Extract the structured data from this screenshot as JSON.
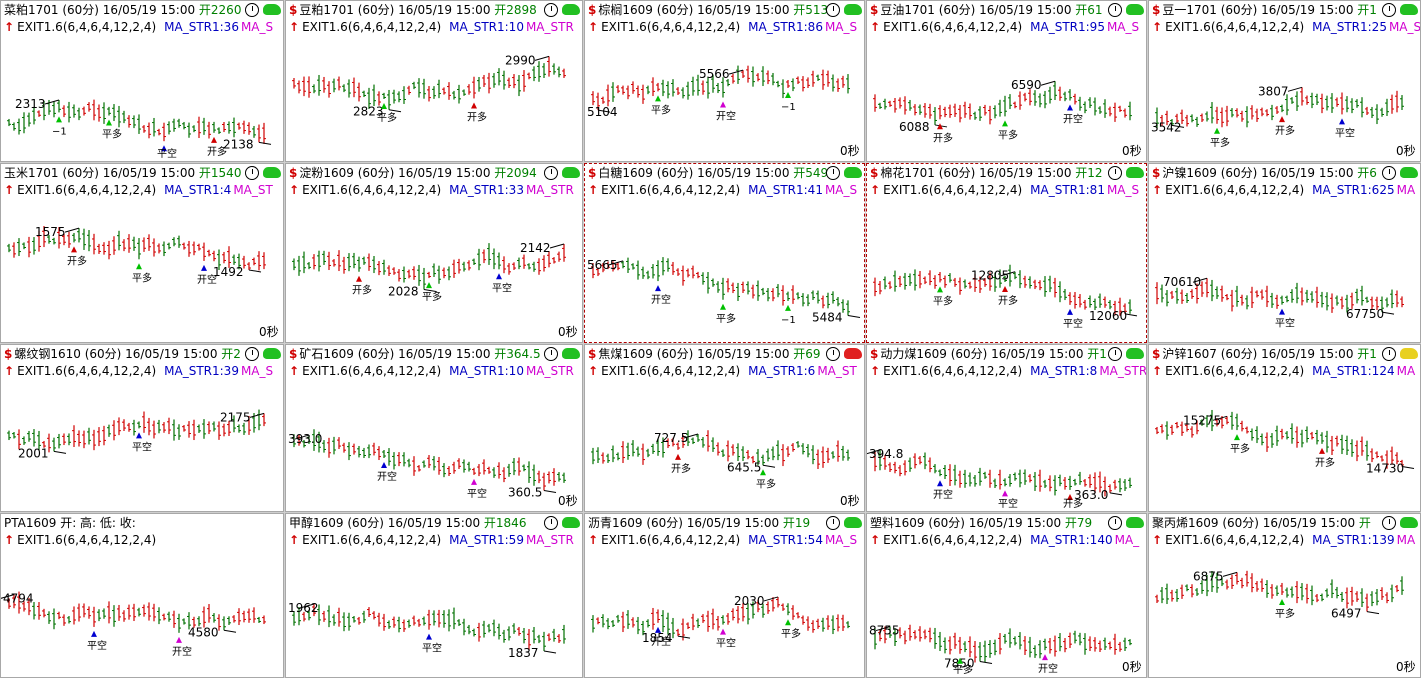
{
  "colors": {
    "up": "#d00000",
    "down": "#007000",
    "sig_up": "#d00000",
    "sig_down": "#00c000",
    "sig_blue": "#0000d0",
    "sig_magenta": "#d000d0",
    "text": "#000000"
  },
  "panels": [
    {
      "name": "菜粕1701",
      "header": "菜粕1701 (60分) 16/05/19 15:00",
      "open": "开2260",
      "ex": "EXIT1.6(6,4,6,4,12,2,4)",
      "ma1": "MA_STR1:36",
      "ma2": "MA_S",
      "bull": "g",
      "selected": false,
      "hi": "2313",
      "lo": "2138",
      "secs": "",
      "labels": [
        {
          "t": "−1",
          "c": "text"
        },
        {
          "t": "平多",
          "c": "text"
        },
        {
          "t": "平空",
          "c": "text"
        },
        {
          "t": "开多",
          "c": "text"
        }
      ]
    },
    {
      "name": "豆粕1701",
      "header": "豆粕1701 (60分) 16/05/19 15:00",
      "open": "开2898",
      "ex": "EXIT1.6(6,4,6,4,12,2,4)",
      "ma1": "MA_STR1:10",
      "ma2": "MA_STR",
      "bull": "g",
      "selected": false,
      "hi": "2990",
      "lo": "2823",
      "secs": "",
      "labels": [
        {
          "t": "平多",
          "c": "text"
        },
        {
          "t": "开多",
          "c": "text"
        }
      ]
    },
    {
      "name": "棕榈1609",
      "header": "棕榈1609 (60分) 16/05/19 15:00",
      "open": "开5132",
      "ex": "EXIT1.6(6,4,6,4,12,2,4)",
      "ma1": "MA_STR1:86",
      "ma2": "MA_S",
      "bull": "g",
      "selected": false,
      "hi": "5566",
      "lo": "5104",
      "secs": "0秒",
      "labels": [
        {
          "t": "平多",
          "c": "text"
        },
        {
          "t": "开空",
          "c": "text"
        },
        {
          "t": "−1",
          "c": "text"
        }
      ]
    },
    {
      "name": "豆油1701",
      "header": "豆油1701 (60分) 16/05/19 15:00",
      "open": "开61",
      "ex": "EXIT1.6(6,4,6,4,12,2,4)",
      "ma1": "MA_STR1:95",
      "ma2": "MA_S",
      "bull": "g",
      "selected": false,
      "hi": "6590",
      "lo": "6088",
      "secs": "0秒",
      "labels": [
        {
          "t": "开多",
          "c": "text"
        },
        {
          "t": "平多",
          "c": "text"
        },
        {
          "t": "开空",
          "c": "text"
        }
      ]
    },
    {
      "name": "豆一1701",
      "header": "豆一1701 (60分) 16/05/19 15:00",
      "open": "开1",
      "ex": "EXIT1.6(6,4,6,4,12,2,4)",
      "ma1": "MA_STR1:25",
      "ma2": "MA_STR",
      "bull": "g",
      "selected": false,
      "hi": "3807",
      "lo": "3542",
      "secs": "0秒",
      "labels": [
        {
          "t": "平多",
          "c": "text"
        },
        {
          "t": "开多",
          "c": "text"
        },
        {
          "t": "平空",
          "c": "text"
        }
      ]
    },
    {
      "name": "玉米1701",
      "header": "玉米1701 (60分) 16/05/19 15:00",
      "open": "开1540",
      "ex": "EXIT1.6(6,4,6,4,12,2,4)",
      "ma1": "MA_STR1:4",
      "ma2": "MA_ST",
      "bull": "g",
      "selected": false,
      "hi": "1575",
      "lo": "1492",
      "secs": "0秒",
      "labels": [
        {
          "t": "开多",
          "c": "text"
        },
        {
          "t": "平多",
          "c": "text"
        },
        {
          "t": "开空",
          "c": "text"
        }
      ]
    },
    {
      "name": "淀粉1609",
      "header": "淀粉1609 (60分) 16/05/19 15:00",
      "open": "开2094",
      "ex": "EXIT1.6(6,4,6,4,12,2,4)",
      "ma1": "MA_STR1:33",
      "ma2": "MA_STR",
      "bull": "g",
      "selected": false,
      "hi": "2142",
      "lo": "2028",
      "secs": "0秒",
      "labels": [
        {
          "t": "开多",
          "c": "text"
        },
        {
          "t": "平多",
          "c": "text"
        },
        {
          "t": "平空",
          "c": "text"
        }
      ]
    },
    {
      "name": "白糖1609",
      "header": "白糖1609 (60分) 16/05/19 15:00",
      "open": "开5499",
      "ex": "EXIT1.6(6,4,6,4,12,2,4)",
      "ma1": "MA_STR1:41",
      "ma2": "MA_S",
      "bull": "g",
      "selected": true,
      "hi": "5665",
      "lo": "5484",
      "secs": "",
      "labels": [
        {
          "t": "开空",
          "c": "text"
        },
        {
          "t": "平多",
          "c": "text"
        },
        {
          "t": "−1",
          "c": "text"
        }
      ]
    },
    {
      "name": "棉花1701",
      "header": "棉花1701 (60分) 16/05/19 15:00",
      "open": "开12",
      "ex": "EXIT1.6(6,4,6,4,12,2,4)",
      "ma1": "MA_STR1:81",
      "ma2": "MA_S",
      "bull": "g",
      "selected": true,
      "hi": "12805",
      "lo": "12060",
      "secs": "",
      "labels": [
        {
          "t": "平多",
          "c": "text"
        },
        {
          "t": "开多",
          "c": "text"
        },
        {
          "t": "平空",
          "c": "text"
        }
      ]
    },
    {
      "name": "沪镍1609",
      "header": "沪镍1609 (60分) 16/05/19 15:00",
      "open": "开6",
      "ex": "EXIT1.6(6,4,6,4,12,2,4)",
      "ma1": "MA_STR1:625",
      "ma2": "MA",
      "bull": "g",
      "selected": false,
      "hi": "70610",
      "lo": "67750",
      "secs": "",
      "labels": [
        {
          "t": "平空",
          "c": "text"
        }
      ]
    },
    {
      "name": "螺纹钢1610",
      "header": "螺纹钢1610 (60分) 16/05/19 15:00",
      "open": "开2",
      "ex": "EXIT1.6(6,4,6,4,12,2,4)",
      "ma1": "MA_STR1:39",
      "ma2": "MA_S",
      "bull": "g",
      "selected": false,
      "hi": "2175",
      "lo": "2001",
      "secs": "",
      "labels": [
        {
          "t": "平空",
          "c": "text"
        }
      ]
    },
    {
      "name": "矿石1609",
      "header": "矿石1609 (60分) 16/05/19 15:00",
      "open": "开364.5",
      "ex": "EXIT1.6(6,4,6,4,12,2,4)",
      "ma1": "MA_STR1:10",
      "ma2": "MA_STR",
      "bull": "g",
      "selected": false,
      "hi": "393.0",
      "lo": "360.5",
      "secs": "0秒",
      "labels": [
        {
          "t": "开空",
          "c": "text"
        },
        {
          "t": "平空",
          "c": "text"
        }
      ]
    },
    {
      "name": "焦煤1609",
      "header": "焦煤1609 (60分) 16/05/19 15:00",
      "open": "开69",
      "ex": "EXIT1.6(6,4,6,4,12,2,4)",
      "ma1": "MA_STR1:6",
      "ma2": "MA_ST",
      "bull": "r",
      "selected": false,
      "hi": "727.5",
      "lo": "645.5",
      "secs": "0秒",
      "labels": [
        {
          "t": "开多",
          "c": "text"
        },
        {
          "t": "平多",
          "c": "text"
        }
      ]
    },
    {
      "name": "动力煤1609",
      "header": "动力煤1609 (60分) 16/05/19 15:00",
      "open": "开1",
      "ex": "EXIT1.6(6,4,6,4,12,2,4)",
      "ma1": "MA_STR1:8",
      "ma2": "MA_STR",
      "bull": "g",
      "selected": false,
      "hi": "394.8",
      "lo": "363.0",
      "secs": "",
      "labels": [
        {
          "t": "开空",
          "c": "text"
        },
        {
          "t": "平空",
          "c": "text"
        },
        {
          "t": "开多",
          "c": "text"
        }
      ]
    },
    {
      "name": "沪锌1607",
      "header": "沪锌1607 (60分) 16/05/19 15:00",
      "open": "开1",
      "ex": "EXIT1.6(6,4,6,4,12,2,4)",
      "ma1": "MA_STR1:124",
      "ma2": "MA",
      "bull": "y",
      "selected": false,
      "hi": "15275",
      "lo": "14730",
      "secs": "",
      "labels": [
        {
          "t": "平多",
          "c": "text"
        },
        {
          "t": "开多",
          "c": "text"
        }
      ]
    },
    {
      "name": "PTA1609",
      "header": "PTA1609 开: 高: 低: 收:",
      "open": "",
      "ex": "EXIT1.6(6,4,6,4,12,2,4)",
      "ma1": "",
      "ma2": "",
      "bull": "",
      "selected": false,
      "hi": "4794",
      "lo": "4580",
      "secs": "",
      "labels": [
        {
          "t": "平空",
          "c": "text"
        },
        {
          "t": "开空",
          "c": "text"
        }
      ]
    },
    {
      "name": "甲醇1609",
      "header": "甲醇1609 (60分) 16/05/19 15:00",
      "open": "开1846",
      "ex": "EXIT1.6(6,4,6,4,12,2,4)",
      "ma1": "MA_STR1:59",
      "ma2": "MA_STR",
      "bull": "g",
      "selected": false,
      "hi": "1962",
      "lo": "1837",
      "secs": "",
      "labels": [
        {
          "t": "平空",
          "c": "text"
        }
      ]
    },
    {
      "name": "沥青1609",
      "header": "沥青1609 (60分) 16/05/19 15:00",
      "open": "开19",
      "ex": "EXIT1.6(6,4,6,4,12,2,4)",
      "ma1": "MA_STR1:54",
      "ma2": "MA_S",
      "bull": "g",
      "selected": false,
      "hi": "2030",
      "lo": "1854",
      "secs": "",
      "labels": [
        {
          "t": "开空",
          "c": "text"
        },
        {
          "t": "平空",
          "c": "text"
        },
        {
          "t": "平多",
          "c": "text"
        }
      ]
    },
    {
      "name": "塑料1609",
      "header": "塑料1609 (60分) 16/05/19 15:00",
      "open": "开79",
      "ex": "EXIT1.6(6,4,6,4,12,2,4)",
      "ma1": "MA_STR1:140",
      "ma2": "MA_",
      "bull": "g",
      "selected": false,
      "hi": "8755",
      "lo": "7850",
      "secs": "0秒",
      "labels": [
        {
          "t": "平多",
          "c": "text"
        },
        {
          "t": "开空",
          "c": "text"
        }
      ]
    },
    {
      "name": "聚丙烯1609",
      "header": "聚丙烯1609 (60分) 16/05/19 15:00",
      "open": "开",
      "ex": "EXIT1.6(6,4,6,4,12,2,4)",
      "ma1": "MA_STR1:139",
      "ma2": "MA",
      "bull": "g",
      "selected": false,
      "hi": "6875",
      "lo": "6497",
      "secs": "0秒",
      "labels": [
        {
          "t": "平多",
          "c": "text"
        }
      ]
    }
  ]
}
